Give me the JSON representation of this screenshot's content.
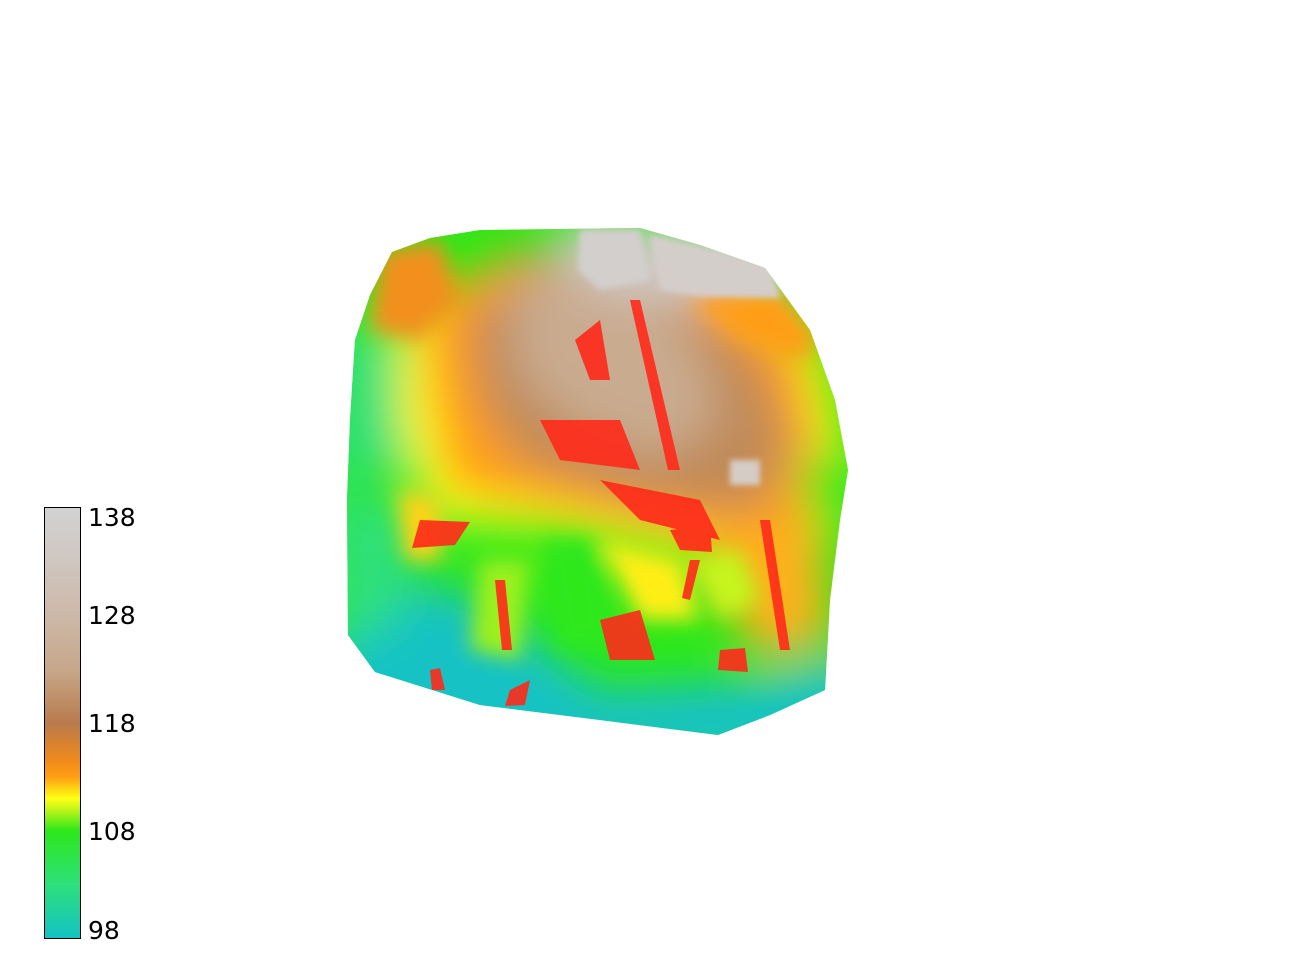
{
  "legend": {
    "ticks": [
      "138",
      "128",
      "118",
      "108",
      "98"
    ],
    "min": 98,
    "max": 138,
    "colormap": [
      {
        "value": 98,
        "color": "#14c2c4"
      },
      {
        "value": 103,
        "color": "#2de07a"
      },
      {
        "value": 108,
        "color": "#2ee81a"
      },
      {
        "value": 110,
        "color": "#c6f51a"
      },
      {
        "value": 111,
        "color": "#ffff14"
      },
      {
        "value": 113,
        "color": "#ff9e14"
      },
      {
        "value": 114.5,
        "color": "#f08a1c"
      },
      {
        "value": 118,
        "color": "#b97a4c"
      },
      {
        "value": 123,
        "color": "#c6a88a"
      },
      {
        "value": 128,
        "color": "#cdb8a8"
      },
      {
        "value": 133,
        "color": "#cfc6c0"
      },
      {
        "value": 138,
        "color": "#d2d2d2"
      }
    ]
  },
  "map": {
    "highlight_color": "#ff2a1a"
  }
}
